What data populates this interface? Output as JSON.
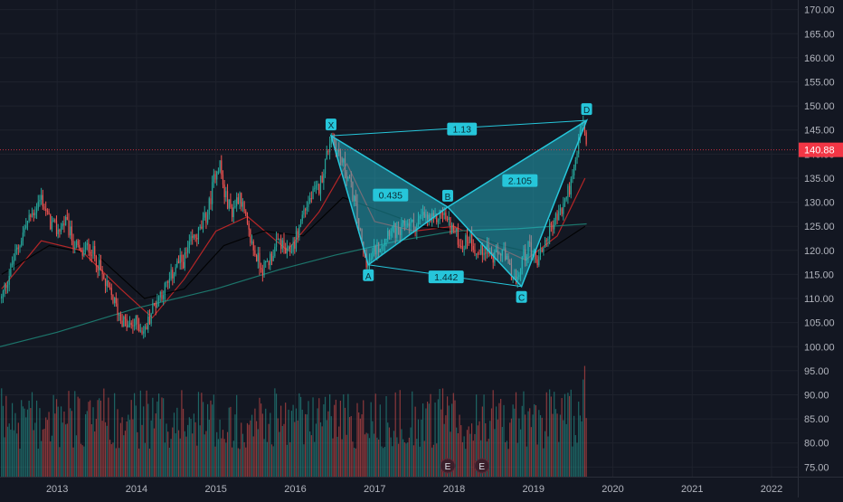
{
  "chart_data": {
    "type": "candlestick",
    "price_axis": {
      "ticks": [
        "170.00",
        "165.00",
        "160.00",
        "155.00",
        "150.00",
        "145.00",
        "140.00",
        "135.00",
        "130.00",
        "125.00",
        "120.00",
        "115.00",
        "110.00",
        "105.00",
        "100.00",
        "95.00",
        "90.00",
        "85.00",
        "80.00",
        "75.00"
      ],
      "range": [
        73,
        172
      ]
    },
    "time_axis": {
      "ticks": [
        "2013",
        "2014",
        "2015",
        "2016",
        "2017",
        "2018",
        "2019",
        "2020",
        "2021",
        "2022"
      ],
      "range": [
        2012.28,
        2022.33
      ]
    },
    "last_price": {
      "label": "140.88",
      "value": 140.88,
      "color": "#f23645"
    },
    "colors": {
      "up": "#26a69a",
      "down": "#ef5350",
      "pattern": "#26c6da",
      "ma_fast": "#c62828",
      "ma_mid": "#000000",
      "ma_slow": "#1e7f73",
      "background": "#131722",
      "grid": "#1e222d"
    },
    "price_series": [
      [
        2012.3,
        110
      ],
      [
        2012.45,
        118
      ],
      [
        2012.6,
        125
      ],
      [
        2012.7,
        128
      ],
      [
        2012.8,
        131
      ],
      [
        2012.9,
        126
      ],
      [
        2013.0,
        124
      ],
      [
        2013.1,
        126
      ],
      [
        2013.2,
        122
      ],
      [
        2013.3,
        119
      ],
      [
        2013.4,
        121
      ],
      [
        2013.5,
        118
      ],
      [
        2013.6,
        113
      ],
      [
        2013.7,
        110
      ],
      [
        2013.8,
        106
      ],
      [
        2013.9,
        104
      ],
      [
        2014.0,
        105
      ],
      [
        2014.1,
        103
      ],
      [
        2014.2,
        108
      ],
      [
        2014.3,
        111
      ],
      [
        2014.4,
        113
      ],
      [
        2014.5,
        117
      ],
      [
        2014.6,
        118
      ],
      [
        2014.7,
        122
      ],
      [
        2014.8,
        124
      ],
      [
        2014.9,
        128
      ],
      [
        2015.0,
        137
      ],
      [
        2015.05,
        138
      ],
      [
        2015.1,
        132
      ],
      [
        2015.2,
        128
      ],
      [
        2015.3,
        132
      ],
      [
        2015.4,
        124
      ],
      [
        2015.5,
        119
      ],
      [
        2015.6,
        116
      ],
      [
        2015.7,
        119
      ],
      [
        2015.8,
        122
      ],
      [
        2015.9,
        119
      ],
      [
        2016.0,
        122
      ],
      [
        2016.1,
        128
      ],
      [
        2016.2,
        131
      ],
      [
        2016.3,
        133
      ],
      [
        2016.4,
        140
      ],
      [
        2016.45,
        144
      ],
      [
        2016.55,
        140
      ],
      [
        2016.65,
        136
      ],
      [
        2016.75,
        130
      ],
      [
        2016.85,
        120
      ],
      [
        2016.92,
        117
      ],
      [
        2017.0,
        120
      ],
      [
        2017.1,
        122
      ],
      [
        2017.2,
        125
      ],
      [
        2017.3,
        123
      ],
      [
        2017.4,
        126
      ],
      [
        2017.5,
        125
      ],
      [
        2017.6,
        127
      ],
      [
        2017.75,
        126
      ],
      [
        2017.85,
        128
      ],
      [
        2017.92,
        126
      ],
      [
        2018.0,
        124
      ],
      [
        2018.1,
        121
      ],
      [
        2018.2,
        123
      ],
      [
        2018.3,
        119
      ],
      [
        2018.4,
        121
      ],
      [
        2018.5,
        118
      ],
      [
        2018.6,
        120
      ],
      [
        2018.7,
        116
      ],
      [
        2018.8,
        113
      ],
      [
        2018.85,
        118
      ],
      [
        2018.95,
        121
      ],
      [
        2019.05,
        118
      ],
      [
        2019.15,
        122
      ],
      [
        2019.25,
        126
      ],
      [
        2019.35,
        128
      ],
      [
        2019.45,
        133
      ],
      [
        2019.5,
        135
      ],
      [
        2019.55,
        140
      ],
      [
        2019.6,
        147
      ],
      [
        2019.65,
        144
      ],
      [
        2019.67,
        140.88
      ]
    ],
    "moving_averages": [
      {
        "color": "#c62828",
        "points": [
          [
            2012.3,
            112
          ],
          [
            2012.8,
            122
          ],
          [
            2013.3,
            120
          ],
          [
            2013.8,
            112
          ],
          [
            2014.2,
            106
          ],
          [
            2014.6,
            114
          ],
          [
            2015.0,
            124
          ],
          [
            2015.4,
            127
          ],
          [
            2015.9,
            120
          ],
          [
            2016.3,
            128
          ],
          [
            2016.65,
            138
          ],
          [
            2017.0,
            126
          ],
          [
            2017.5,
            124
          ],
          [
            2018.0,
            125
          ],
          [
            2018.5,
            121
          ],
          [
            2018.9,
            118
          ],
          [
            2019.3,
            123
          ],
          [
            2019.65,
            135
          ]
        ]
      },
      {
        "color": "#000000",
        "points": [
          [
            2012.3,
            115
          ],
          [
            2012.9,
            121
          ],
          [
            2013.5,
            119
          ],
          [
            2014.1,
            110
          ],
          [
            2014.6,
            112
          ],
          [
            2015.1,
            121
          ],
          [
            2015.6,
            124
          ],
          [
            2016.1,
            123
          ],
          [
            2016.6,
            131
          ],
          [
            2017.1,
            128
          ],
          [
            2017.6,
            125
          ],
          [
            2018.1,
            124
          ],
          [
            2018.6,
            121
          ],
          [
            2019.1,
            119
          ],
          [
            2019.65,
            125
          ]
        ]
      },
      {
        "color": "#1e7f73",
        "points": [
          [
            2012.28,
            100
          ],
          [
            2013.0,
            103
          ],
          [
            2014.0,
            108
          ],
          [
            2015.0,
            112
          ],
          [
            2015.8,
            116
          ],
          [
            2016.5,
            119
          ],
          [
            2017.3,
            122
          ],
          [
            2018.0,
            124
          ],
          [
            2018.8,
            124.5
          ],
          [
            2019.67,
            125.5
          ]
        ]
      }
    ],
    "pattern": {
      "points": [
        {
          "label": "X",
          "x": 2016.45,
          "y": 143.8
        },
        {
          "label": "A",
          "x": 2016.92,
          "y": 117.0
        },
        {
          "label": "B",
          "x": 2017.92,
          "y": 129.0
        },
        {
          "label": "C",
          "x": 2018.85,
          "y": 112.5
        },
        {
          "label": "D",
          "x": 2019.67,
          "y": 147.0
        }
      ],
      "ratios": [
        {
          "label": "1.13",
          "x": 2018.1,
          "y": 145.2
        },
        {
          "label": "0.435",
          "x": 2017.2,
          "y": 131.5
        },
        {
          "label": "2.105",
          "x": 2018.83,
          "y": 134.5
        },
        {
          "label": "1.442",
          "x": 2017.9,
          "y": 114.5
        }
      ]
    },
    "volume": {
      "base_price": 73.0,
      "peak_price": 96.0
    },
    "earnings_markers": [
      {
        "label": "E",
        "x": 2017.92
      },
      {
        "label": "E",
        "x": 2018.35
      }
    ]
  }
}
